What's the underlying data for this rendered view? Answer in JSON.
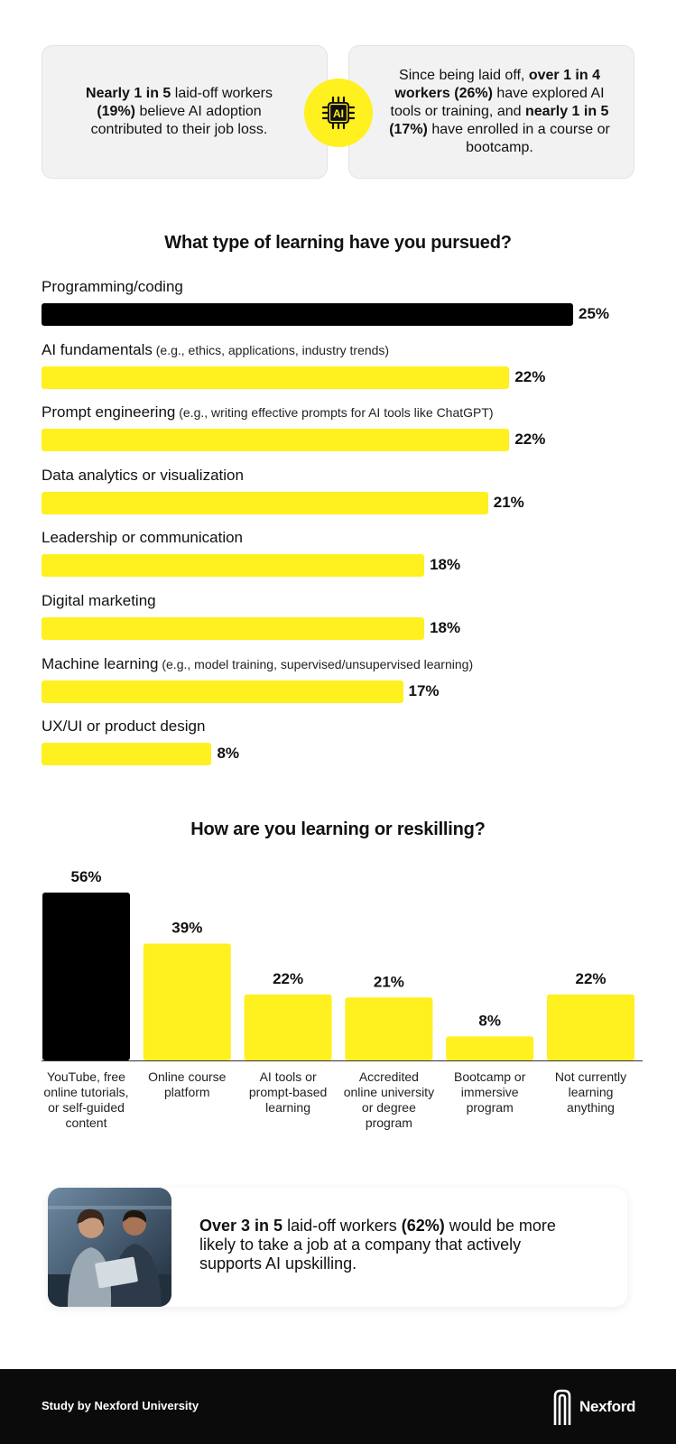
{
  "stats": {
    "left": {
      "b1": "Nearly 1 in 5",
      "t1": " laid-off workers ",
      "b2": "(19%)",
      "t2": " believe AI adoption contributed to their job loss."
    },
    "badge_text": "AI",
    "right": {
      "t1": "Since being laid off, ",
      "b1": "over 1 in 4 workers (26%)",
      "t2": " have explored AI tools or training, and ",
      "b2": "nearly 1 in 5 (17%)",
      "t3": " have enrolled in a course or bootcamp."
    }
  },
  "colors": {
    "highlight": "#000000",
    "bar": "#fff01f",
    "ink": "#0b0b0b"
  },
  "chart_data": [
    {
      "type": "bar",
      "orientation": "horizontal",
      "title": "What type of learning have you pursued?",
      "xlim": [
        0,
        25
      ],
      "categories": [
        {
          "label": "Programming/coding",
          "sub": "",
          "value": 25,
          "display": "25%",
          "highlight": true
        },
        {
          "label": "AI fundamentals",
          "sub": "(e.g., ethics, applications, industry trends)",
          "value": 22,
          "display": "22%",
          "highlight": false
        },
        {
          "label": "Prompt engineering",
          "sub": "(e.g., writing effective prompts for AI tools like ChatGPT)",
          "value": 22,
          "display": "22%",
          "highlight": false
        },
        {
          "label": "Data analytics or visualization",
          "sub": "",
          "value": 21,
          "display": "21%",
          "highlight": false
        },
        {
          "label": "Leadership or communication",
          "sub": "",
          "value": 18,
          "display": "18%",
          "highlight": false
        },
        {
          "label": "Digital marketing",
          "sub": "",
          "value": 18,
          "display": "18%",
          "highlight": false
        },
        {
          "label": "Machine learning",
          "sub": "(e.g., model training, supervised/unsupervised learning)",
          "value": 17,
          "display": "17%",
          "highlight": false
        },
        {
          "label": "UX/UI or product design",
          "sub": "",
          "value": 8,
          "display": "8%",
          "highlight": false
        }
      ]
    },
    {
      "type": "bar",
      "orientation": "vertical",
      "title": "How are you learning or reskilling?",
      "ylim": [
        0,
        56
      ],
      "categories": [
        {
          "label": [
            "YouTube, free",
            "online tutorials,",
            "or self-guided",
            "content"
          ],
          "value": 56,
          "display": "56%",
          "highlight": true
        },
        {
          "label": [
            "Online course",
            "platform"
          ],
          "value": 39,
          "display": "39%",
          "highlight": false
        },
        {
          "label": [
            "AI tools or",
            "prompt-based",
            "learning"
          ],
          "value": 22,
          "display": "22%",
          "highlight": false
        },
        {
          "label": [
            "Accredited",
            "online university",
            "or degree",
            "program"
          ],
          "value": 21,
          "display": "21%",
          "highlight": false
        },
        {
          "label": [
            "Bootcamp or",
            "immersive",
            "program"
          ],
          "value": 8,
          "display": "8%",
          "highlight": false
        },
        {
          "label": [
            "Not currently",
            "learning",
            "anything"
          ],
          "value": 22,
          "display": "22%",
          "highlight": false
        }
      ]
    }
  ],
  "promo": {
    "b1": "Over 3 in 5",
    "t1": " laid-off workers ",
    "b2": "(62%)",
    "t2": " would be more likely to take a job at a company that actively supports AI upskilling."
  },
  "footer": {
    "credit": "Study by Nexford University",
    "brand": "Nexford",
    "logo_icon": "nexford-logo-icon"
  }
}
